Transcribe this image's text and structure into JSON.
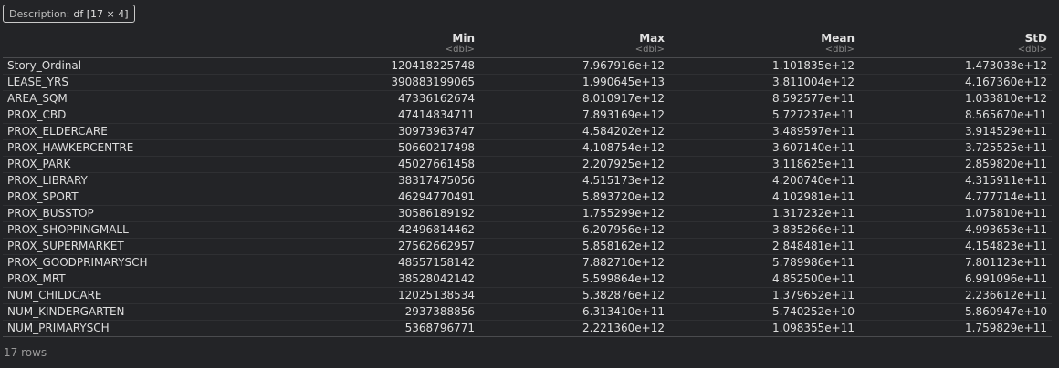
{
  "description": {
    "label": "Description:",
    "value": "df [17 × 4]"
  },
  "columns": [
    {
      "name": "Min",
      "type": "<dbl>"
    },
    {
      "name": "Max",
      "type": "<dbl>"
    },
    {
      "name": "Mean",
      "type": "<dbl>"
    },
    {
      "name": "StD",
      "type": "<dbl>"
    }
  ],
  "rows": [
    {
      "name": "Story_Ordinal",
      "min": "120418225748",
      "max": "7.967916e+12",
      "mean": "1.101835e+12",
      "std": "1.473038e+12"
    },
    {
      "name": "LEASE_YRS",
      "min": "390883199065",
      "max": "1.990645e+13",
      "mean": "3.811004e+12",
      "std": "4.167360e+12"
    },
    {
      "name": "AREA_SQM",
      "min": "47336162674",
      "max": "8.010917e+12",
      "mean": "8.592577e+11",
      "std": "1.033810e+12"
    },
    {
      "name": "PROX_CBD",
      "min": "47414834711",
      "max": "7.893169e+12",
      "mean": "5.727237e+11",
      "std": "8.565670e+11"
    },
    {
      "name": "PROX_ELDERCARE",
      "min": "30973963747",
      "max": "4.584202e+12",
      "mean": "3.489597e+11",
      "std": "3.914529e+11"
    },
    {
      "name": "PROX_HAWKERCENTRE",
      "min": "50660217498",
      "max": "4.108754e+12",
      "mean": "3.607140e+11",
      "std": "3.725525e+11"
    },
    {
      "name": "PROX_PARK",
      "min": "45027661458",
      "max": "2.207925e+12",
      "mean": "3.118625e+11",
      "std": "2.859820e+11"
    },
    {
      "name": "PROX_LIBRARY",
      "min": "38317475056",
      "max": "4.515173e+12",
      "mean": "4.200740e+11",
      "std": "4.315911e+11"
    },
    {
      "name": "PROX_SPORT",
      "min": "46294770491",
      "max": "5.893720e+12",
      "mean": "4.102981e+11",
      "std": "4.777714e+11"
    },
    {
      "name": "PROX_BUSSTOP",
      "min": "30586189192",
      "max": "1.755299e+12",
      "mean": "1.317232e+11",
      "std": "1.075810e+11"
    },
    {
      "name": "PROX_SHOPPINGMALL",
      "min": "42496814462",
      "max": "6.207956e+12",
      "mean": "3.835266e+11",
      "std": "4.993653e+11"
    },
    {
      "name": "PROX_SUPERMARKET",
      "min": "27562662957",
      "max": "5.858162e+12",
      "mean": "2.848481e+11",
      "std": "4.154823e+11"
    },
    {
      "name": "PROX_GOODPRIMARYSCH",
      "min": "48557158142",
      "max": "7.882710e+12",
      "mean": "5.789986e+11",
      "std": "7.801123e+11"
    },
    {
      "name": "PROX_MRT",
      "min": "38528042142",
      "max": "5.599864e+12",
      "mean": "4.852500e+11",
      "std": "6.991096e+11"
    },
    {
      "name": "NUM_CHILDCARE",
      "min": "12025138534",
      "max": "5.382876e+12",
      "mean": "1.379652e+11",
      "std": "2.236612e+11"
    },
    {
      "name": "NUM_KINDERGARTEN",
      "min": "2937388856",
      "max": "6.313410e+11",
      "mean": "5.740252e+10",
      "std": "5.860947e+10"
    },
    {
      "name": "NUM_PRIMARYSCH",
      "min": "5368796771",
      "max": "2.221360e+12",
      "mean": "1.098355e+11",
      "std": "1.759829e+11"
    }
  ],
  "footer": {
    "row_count": "17 rows"
  }
}
